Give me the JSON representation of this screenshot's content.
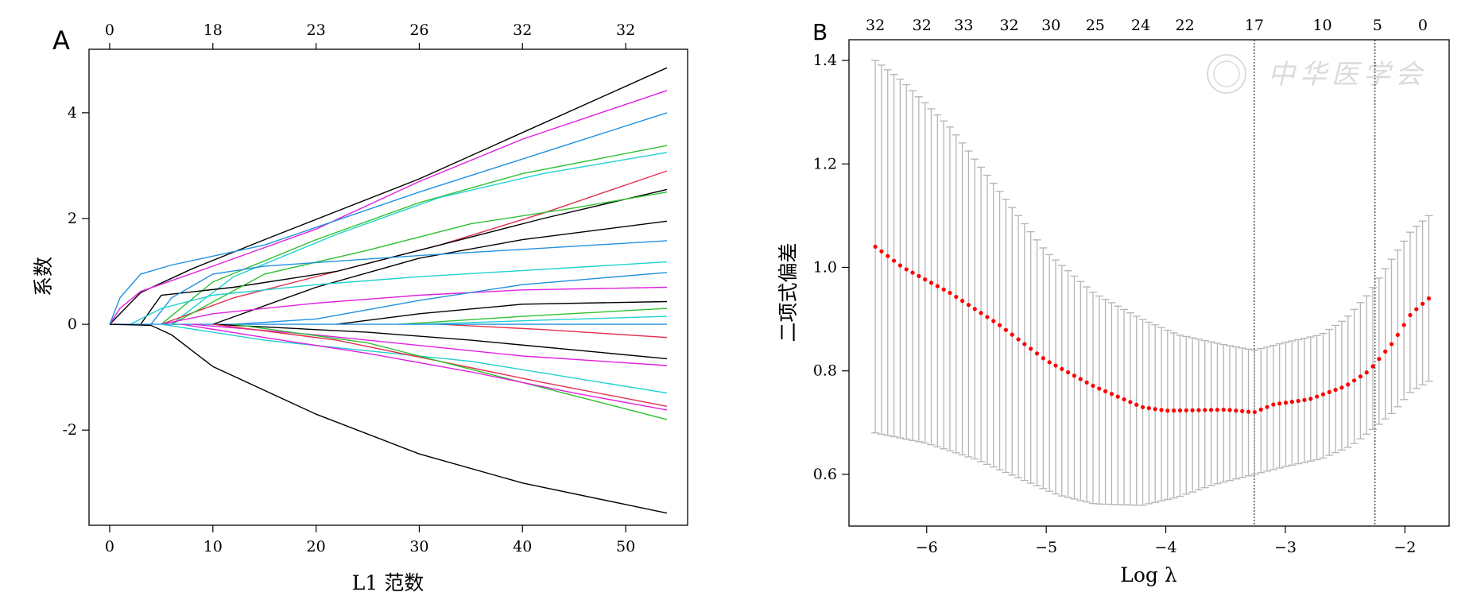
{
  "chart_data": [
    {
      "panel": "A",
      "type": "line",
      "xlabel": "L1 范数",
      "ylabel": "系数",
      "xlim": [
        -2,
        56
      ],
      "ylim": [
        -3.8,
        5.2
      ],
      "x_ticks": [
        "0",
        "10",
        "20",
        "30",
        "40",
        "50"
      ],
      "x_tick_values": [
        0,
        10,
        20,
        30,
        40,
        50
      ],
      "y_ticks": [
        "-2",
        "0",
        "2",
        "4"
      ],
      "y_tick_values": [
        -2,
        0,
        2,
        4
      ],
      "top_ticks": [
        "0",
        "18",
        "23",
        "26",
        "32",
        "32"
      ],
      "top_tick_values": [
        0,
        10,
        20,
        30,
        40,
        50
      ],
      "grid": false,
      "legend": "none",
      "series": [
        {
          "color": "#000000",
          "points": [
            [
              0,
              0
            ],
            [
              3,
              0.6
            ],
            [
              8,
              1.05
            ],
            [
              15,
              1.6
            ],
            [
              30,
              2.75
            ],
            [
              54,
              4.85
            ]
          ]
        },
        {
          "color": "#e020e0",
          "points": [
            [
              0,
              0
            ],
            [
              1,
              0.3
            ],
            [
              3,
              0.62
            ],
            [
              10,
              1.1
            ],
            [
              20,
              1.8
            ],
            [
              30,
              2.7
            ],
            [
              40,
              3.5
            ],
            [
              54,
              4.42
            ]
          ]
        },
        {
          "color": "#2090e0",
          "points": [
            [
              0,
              0
            ],
            [
              1,
              0.5
            ],
            [
              3,
              0.95
            ],
            [
              6,
              1.12
            ],
            [
              15,
              1.5
            ],
            [
              30,
              2.5
            ],
            [
              54,
              4.0
            ]
          ]
        },
        {
          "color": "#30c030",
          "points": [
            [
              5,
              0
            ],
            [
              10,
              0.8
            ],
            [
              20,
              1.6
            ],
            [
              30,
              2.3
            ],
            [
              40,
              2.85
            ],
            [
              54,
              3.38
            ]
          ]
        },
        {
          "color": "#20d0d0",
          "points": [
            [
              6,
              0
            ],
            [
              12,
              0.9
            ],
            [
              22,
              1.7
            ],
            [
              32,
              2.4
            ],
            [
              42,
              2.85
            ],
            [
              54,
              3.25
            ]
          ]
        },
        {
          "color": "#e03050",
          "points": [
            [
              5,
              0
            ],
            [
              12,
              0.5
            ],
            [
              22,
              1.0
            ],
            [
              32,
              1.5
            ],
            [
              42,
              2.1
            ],
            [
              54,
              2.9
            ]
          ]
        },
        {
          "color": "#000000",
          "points": [
            [
              3,
              0
            ],
            [
              5,
              0.55
            ],
            [
              12,
              0.7
            ],
            [
              22,
              1.0
            ],
            [
              32,
              1.5
            ],
            [
              42,
              2.0
            ],
            [
              54,
              2.55
            ]
          ]
        },
        {
          "color": "#30c030",
          "points": [
            [
              6,
              0
            ],
            [
              15,
              0.95
            ],
            [
              25,
              1.4
            ],
            [
              35,
              1.9
            ],
            [
              45,
              2.2
            ],
            [
              54,
              2.5
            ]
          ]
        },
        {
          "color": "#000000",
          "points": [
            [
              10,
              0
            ],
            [
              20,
              0.7
            ],
            [
              30,
              1.25
            ],
            [
              40,
              1.6
            ],
            [
              54,
              1.95
            ]
          ]
        },
        {
          "color": "#2090e0",
          "points": [
            [
              4,
              0
            ],
            [
              6,
              0.5
            ],
            [
              10,
              0.95
            ],
            [
              15,
              1.1
            ],
            [
              30,
              1.3
            ],
            [
              54,
              1.58
            ]
          ]
        },
        {
          "color": "#20d0d0",
          "points": [
            [
              2,
              0
            ],
            [
              5,
              0.3
            ],
            [
              10,
              0.55
            ],
            [
              20,
              0.75
            ],
            [
              30,
              0.9
            ],
            [
              54,
              1.18
            ]
          ]
        },
        {
          "color": "#e020e0",
          "points": [
            [
              5,
              0
            ],
            [
              10,
              0.2
            ],
            [
              20,
              0.4
            ],
            [
              30,
              0.55
            ],
            [
              40,
              0.65
            ],
            [
              54,
              0.7
            ]
          ]
        },
        {
          "color": "#2090e0",
          "points": [
            [
              12,
              0
            ],
            [
              20,
              0.1
            ],
            [
              30,
              0.45
            ],
            [
              40,
              0.75
            ],
            [
              54,
              0.98
            ]
          ]
        },
        {
          "color": "#000000",
          "points": [
            [
              22,
              0
            ],
            [
              30,
              0.2
            ],
            [
              40,
              0.38
            ],
            [
              54,
              0.43
            ]
          ]
        },
        {
          "color": "#30c030",
          "points": [
            [
              28,
              0
            ],
            [
              40,
              0.15
            ],
            [
              54,
              0.3
            ]
          ]
        },
        {
          "color": "#20d0d0",
          "points": [
            [
              30,
              0
            ],
            [
              42,
              0.08
            ],
            [
              54,
              0.15
            ]
          ]
        },
        {
          "color": "#e03050",
          "points": [
            [
              32,
              0
            ],
            [
              42,
              -0.1
            ],
            [
              54,
              -0.25
            ]
          ]
        },
        {
          "color": "#2090e0",
          "points": [
            [
              0,
              0
            ],
            [
              54,
              0.0
            ]
          ]
        },
        {
          "color": "#000000",
          "points": [
            [
              10,
              0
            ],
            [
              25,
              -0.15
            ],
            [
              35,
              -0.3
            ],
            [
              54,
              -0.65
            ]
          ]
        },
        {
          "color": "#e020e0",
          "points": [
            [
              8,
              0
            ],
            [
              20,
              -0.2
            ],
            [
              30,
              -0.4
            ],
            [
              40,
              -0.6
            ],
            [
              54,
              -0.78
            ]
          ]
        },
        {
          "color": "#20d0d0",
          "points": [
            [
              5,
              0
            ],
            [
              15,
              -0.3
            ],
            [
              25,
              -0.5
            ],
            [
              35,
              -0.7
            ],
            [
              54,
              -1.3
            ]
          ]
        },
        {
          "color": "#e03050",
          "points": [
            [
              10,
              0
            ],
            [
              22,
              -0.3
            ],
            [
              32,
              -0.7
            ],
            [
              42,
              -1.1
            ],
            [
              54,
              -1.55
            ]
          ]
        },
        {
          "color": "#30c030",
          "points": [
            [
              12,
              0
            ],
            [
              25,
              -0.35
            ],
            [
              35,
              -0.85
            ],
            [
              45,
              -1.35
            ],
            [
              54,
              -1.8
            ]
          ]
        },
        {
          "color": "#e020e0",
          "points": [
            [
              7,
              0
            ],
            [
              15,
              -0.25
            ],
            [
              25,
              -0.55
            ],
            [
              35,
              -0.9
            ],
            [
              45,
              -1.3
            ],
            [
              54,
              -1.62
            ]
          ]
        },
        {
          "color": "#000000",
          "points": [
            [
              0,
              0
            ],
            [
              4,
              -0.02
            ],
            [
              6,
              -0.2
            ],
            [
              10,
              -0.8
            ],
            [
              20,
              -1.7
            ],
            [
              30,
              -2.45
            ],
            [
              40,
              -3.0
            ],
            [
              54,
              -3.57
            ]
          ]
        }
      ]
    },
    {
      "panel": "B",
      "type": "line",
      "xlabel": "Log λ",
      "ylabel": "二项式偏差",
      "xlim": [
        -6.65,
        -1.63
      ],
      "ylim": [
        0.5,
        1.44
      ],
      "x_ticks": [
        "−6",
        "−5",
        "−4",
        "−3",
        "−2"
      ],
      "x_tick_values": [
        -6,
        -5,
        -4,
        -3,
        -2
      ],
      "y_ticks": [
        "0.6",
        "0.8",
        "1.0",
        "1.2",
        "1.4"
      ],
      "y_tick_values": [
        0.6,
        0.8,
        1.0,
        1.2,
        1.4
      ],
      "top_ticks": [
        "32",
        "32",
        "33",
        "32",
        "30",
        "25",
        "24",
        "22",
        "17",
        "10",
        "5",
        "0"
      ],
      "top_tick_values": [
        -6.43,
        -6.04,
        -5.69,
        -5.31,
        -4.96,
        -4.59,
        -4.21,
        -3.84,
        -3.26,
        -2.69,
        -2.23,
        -1.85
      ],
      "grid": false,
      "legend": "none",
      "vlines": [
        -3.26,
        -2.25
      ],
      "point_color": "#ff0000",
      "errorbar_color": "#b4b4b4",
      "x_range": [
        -6.43,
        -1.8
      ],
      "n_points": 90,
      "mean_knots": [
        [
          -6.43,
          1.04
        ],
        [
          -6.2,
          1.0
        ],
        [
          -5.8,
          0.95
        ],
        [
          -5.4,
          0.89
        ],
        [
          -5.0,
          0.82
        ],
        [
          -4.6,
          0.77
        ],
        [
          -4.2,
          0.73
        ],
        [
          -4.0,
          0.723
        ],
        [
          -3.5,
          0.725
        ],
        [
          -3.26,
          0.72
        ],
        [
          -3.1,
          0.735
        ],
        [
          -2.8,
          0.745
        ],
        [
          -2.5,
          0.77
        ],
        [
          -2.3,
          0.8
        ],
        [
          -2.1,
          0.855
        ],
        [
          -1.95,
          0.91
        ],
        [
          -1.8,
          0.94
        ]
      ],
      "upper_knots": [
        [
          -6.43,
          1.4
        ],
        [
          -6.2,
          1.36
        ],
        [
          -5.8,
          1.27
        ],
        [
          -5.4,
          1.15
        ],
        [
          -5.0,
          1.03
        ],
        [
          -4.6,
          0.95
        ],
        [
          -4.2,
          0.9
        ],
        [
          -3.9,
          0.87
        ],
        [
          -3.5,
          0.85
        ],
        [
          -3.26,
          0.84
        ],
        [
          -3.0,
          0.855
        ],
        [
          -2.7,
          0.87
        ],
        [
          -2.5,
          0.9
        ],
        [
          -2.3,
          0.95
        ],
        [
          -2.1,
          1.02
        ],
        [
          -1.95,
          1.07
        ],
        [
          -1.8,
          1.1
        ]
      ],
      "lower_knots": [
        [
          -6.43,
          0.68
        ],
        [
          -6.0,
          0.66
        ],
        [
          -5.6,
          0.63
        ],
        [
          -5.2,
          0.59
        ],
        [
          -4.9,
          0.56
        ],
        [
          -4.6,
          0.543
        ],
        [
          -4.2,
          0.54
        ],
        [
          -3.9,
          0.556
        ],
        [
          -3.6,
          0.58
        ],
        [
          -3.26,
          0.6
        ],
        [
          -3.0,
          0.615
        ],
        [
          -2.7,
          0.63
        ],
        [
          -2.45,
          0.655
        ],
        [
          -2.25,
          0.69
        ],
        [
          -2.1,
          0.72
        ],
        [
          -1.95,
          0.76
        ],
        [
          -1.8,
          0.78
        ]
      ]
    }
  ],
  "panels": {
    "a_letter": "A",
    "b_letter": "B"
  },
  "watermark": {
    "text": "中华医学会"
  }
}
